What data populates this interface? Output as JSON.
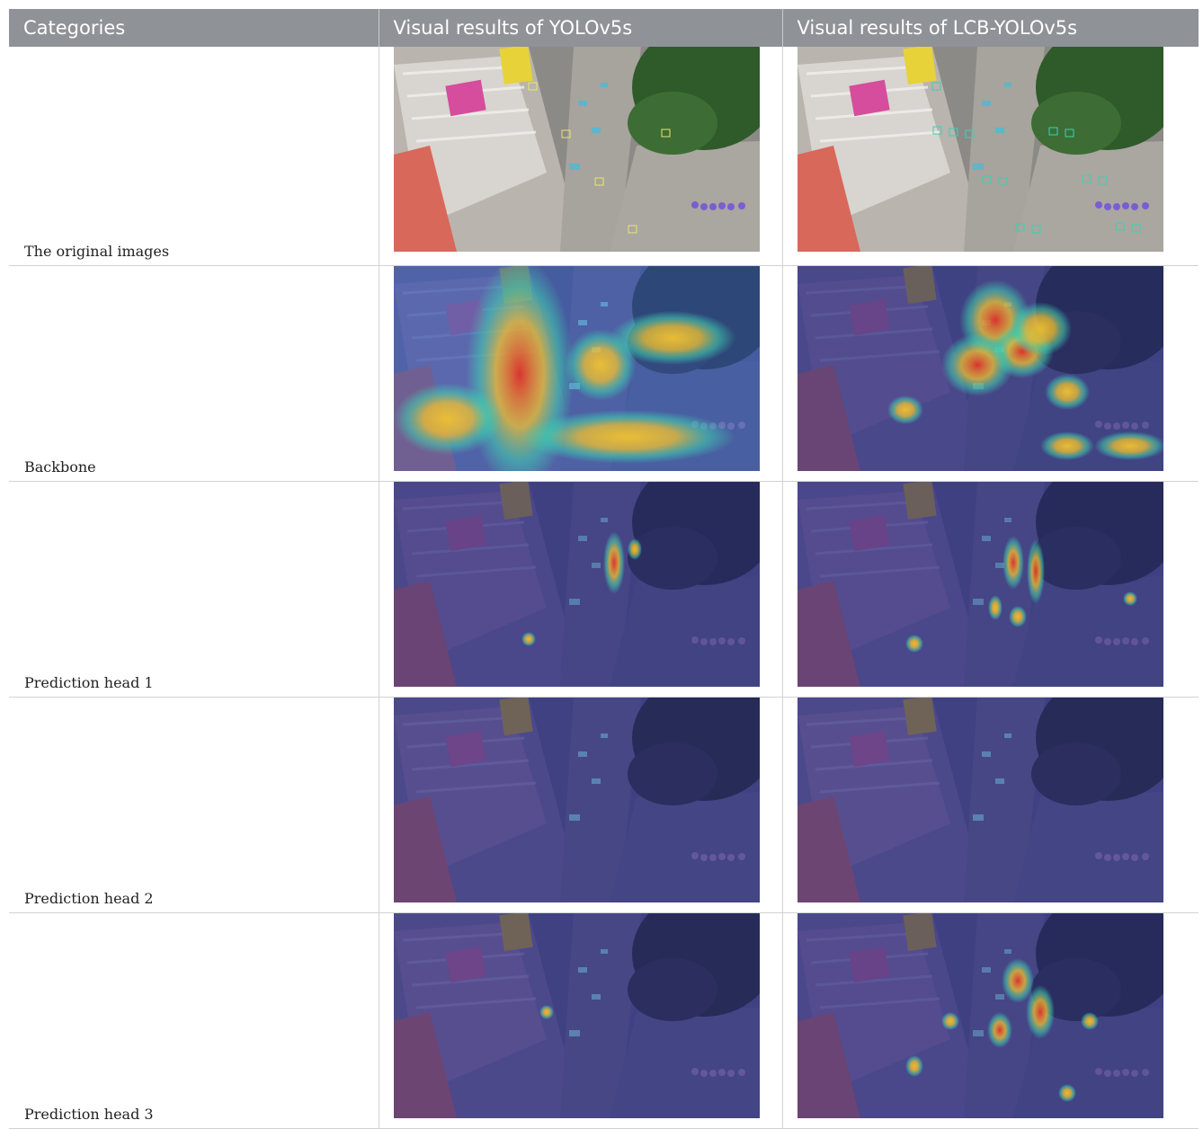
{
  "table": {
    "headers": [
      "Categories",
      "Visual results of YOLOv5s",
      "Visual results of LCB-YOLOv5s"
    ],
    "rows": [
      {
        "category": "The original images",
        "left_kind": "original",
        "right_kind": "original"
      },
      {
        "category": "Backbone",
        "left_kind": "heatmap",
        "right_kind": "heatmap"
      },
      {
        "category": "Prediction head 1",
        "left_kind": "heatmap",
        "right_kind": "heatmap"
      },
      {
        "category": "Prediction head 2",
        "left_kind": "heatmap",
        "right_kind": "heatmap"
      },
      {
        "category": "Prediction head 3",
        "left_kind": "heatmap",
        "right_kind": "heatmap"
      }
    ]
  },
  "colors": {
    "header_bg": "#8f9297",
    "header_text": "#ffffff",
    "heat_base": "#3a3f8f",
    "heat_hot": "#e0322a",
    "heat_warm": "#f2c230",
    "heat_mid": "#3fd1b0"
  }
}
